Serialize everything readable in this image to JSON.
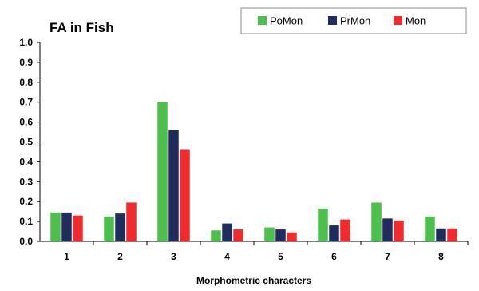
{
  "chart_data": {
    "type": "bar",
    "title": "FA in Fish",
    "xlabel": "Morphometric characters",
    "ylabel": "",
    "categories": [
      "1",
      "2",
      "3",
      "4",
      "5",
      "6",
      "7",
      "8"
    ],
    "ylim": [
      0,
      1.0
    ],
    "yticks": [
      "0.0",
      "0.1",
      "0.2",
      "0.3",
      "0.4",
      "0.5",
      "0.6",
      "0.7",
      "0.8",
      "0.9",
      "1.0"
    ],
    "legend_position": "top-right",
    "grid": false,
    "series": [
      {
        "name": "PoMon",
        "color": "#4cbf4c",
        "values": [
          0.145,
          0.125,
          0.7,
          0.055,
          0.07,
          0.165,
          0.195,
          0.125
        ]
      },
      {
        "name": "PrMon",
        "color": "#1f2d5c",
        "values": [
          0.145,
          0.14,
          0.56,
          0.09,
          0.06,
          0.08,
          0.115,
          0.065
        ]
      },
      {
        "name": "Mon",
        "color": "#ef2b2d",
        "values": [
          0.13,
          0.195,
          0.46,
          0.06,
          0.045,
          0.11,
          0.105,
          0.065
        ]
      }
    ]
  }
}
